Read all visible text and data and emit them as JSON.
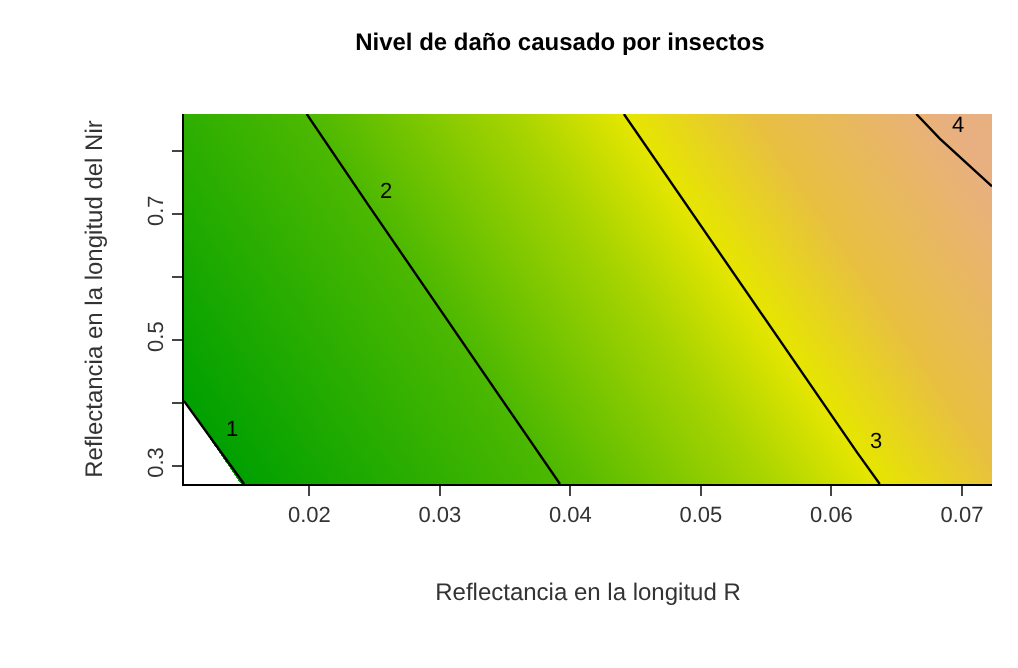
{
  "chart_data": {
    "type": "line",
    "title": "Nivel de daño causado por insectos",
    "xlabel": "Reflectancia en la longitud R",
    "ylabel": "Reflectancia en la longitud del Nir",
    "xlim": [
      0.0104,
      0.0723
    ],
    "ylim": [
      0.271,
      0.859
    ],
    "xticks": [
      0.02,
      0.03,
      0.04,
      0.05,
      0.06,
      0.07
    ],
    "yticks": [
      0.3,
      {
        "value": 0.4,
        "label": null
      },
      0.5,
      {
        "value": 0.6,
        "label": null
      },
      0.7,
      {
        "value": 0.8,
        "label": null
      }
    ],
    "grid": false,
    "legend": false,
    "marker": "none",
    "line_style": "solid",
    "series": [
      {
        "name": "1",
        "color": "#000000",
        "x": [
          0.0104,
          0.0127,
          0.015
        ],
        "values": [
          0.403,
          0.337,
          0.271
        ]
      },
      {
        "name": "2",
        "color": "#000000",
        "x": [
          0.0198,
          0.0245,
          0.0392
        ],
        "values": [
          0.859,
          0.715,
          0.271
        ]
      },
      {
        "name": "3",
        "color": "#000000",
        "x": [
          0.0441,
          0.062,
          0.0637
        ],
        "values": [
          0.859,
          0.32,
          0.271
        ]
      },
      {
        "name": "4",
        "color": "#000000",
        "x": [
          0.0665,
          0.0683,
          0.0723
        ],
        "values": [
          0.859,
          0.82,
          0.744
        ]
      }
    ]
  }
}
